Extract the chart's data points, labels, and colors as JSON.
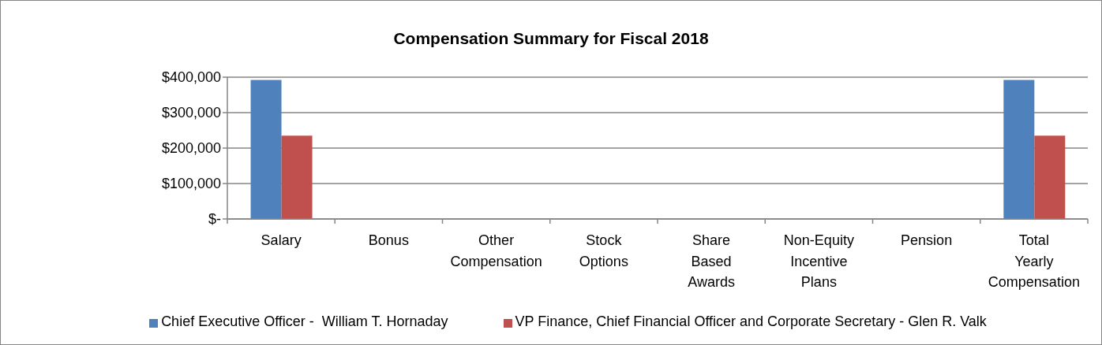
{
  "chart_data": {
    "type": "bar",
    "title": "Compensation Summary for Fiscal 2018",
    "categories": [
      "Salary",
      "Bonus",
      "Other Compensation",
      "Stock Options",
      "Share Based Awards",
      "Non-Equity Incentive Plans",
      "Pension",
      "Total Yearly Compensation"
    ],
    "series": [
      {
        "name": "Chief Executive Officer -  William T. Hornaday",
        "color": "#4f81bd",
        "values": [
          392000,
          0,
          0,
          0,
          0,
          0,
          0,
          392000
        ]
      },
      {
        "name": "VP Finance, Chief Financial Officer and Corporate Secretary - Glen R. Valk",
        "color": "#c0504d",
        "values": [
          235000,
          0,
          0,
          0,
          0,
          0,
          0,
          235000
        ]
      }
    ],
    "ylim": [
      0,
      400000
    ],
    "yticks": [
      {
        "value": 0,
        "label": "$-"
      },
      {
        "value": 100000,
        "label": "$100,000"
      },
      {
        "value": 200000,
        "label": "$200,000"
      },
      {
        "value": 300000,
        "label": "$300,000"
      },
      {
        "value": 400000,
        "label": "$400,000"
      }
    ],
    "grid": "y",
    "legend": "bottom"
  }
}
